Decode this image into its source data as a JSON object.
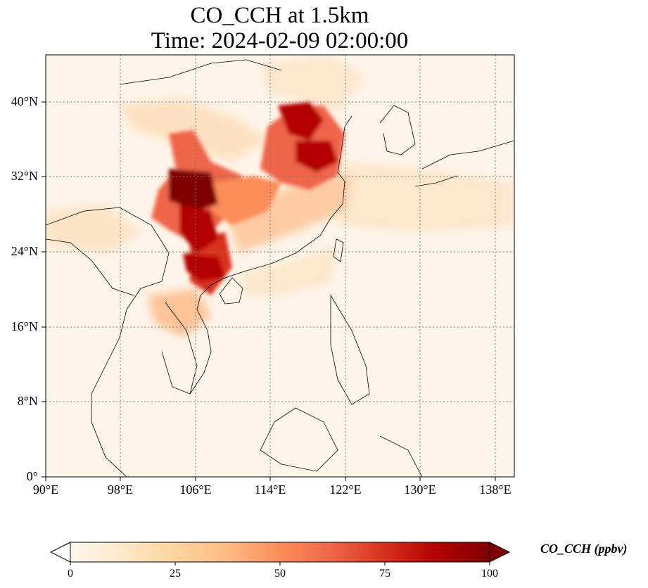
{
  "title": {
    "line1": "CO_CCH at 1.5km",
    "line2": "Time: 2024-02-09 02:00:00"
  },
  "map": {
    "projection": "PlateCarree",
    "extent": {
      "lon": [
        90,
        140
      ],
      "lat": [
        0,
        45
      ]
    },
    "gridlines": "dotted",
    "lat_ticks": [
      "0°",
      "8°N",
      "16°N",
      "24°N",
      "32°N",
      "40°N"
    ],
    "lon_ticks": [
      "90°E",
      "98°E",
      "106°E",
      "114°E",
      "122°E",
      "130°E",
      "138°E"
    ],
    "field": "CO_CCH concentration at 1.5km"
  },
  "colorbar": {
    "label": "CO_CCH (ppbv)",
    "ticks": [
      "0",
      "25",
      "50",
      "75",
      "100"
    ],
    "range": [
      0,
      100
    ],
    "extend": "both",
    "colormap": [
      "#fff7ec",
      "#fee8c8",
      "#fdd49e",
      "#fdbb84",
      "#fc8d59",
      "#ef6548",
      "#d7301f",
      "#b30000",
      "#7f0000"
    ]
  }
}
